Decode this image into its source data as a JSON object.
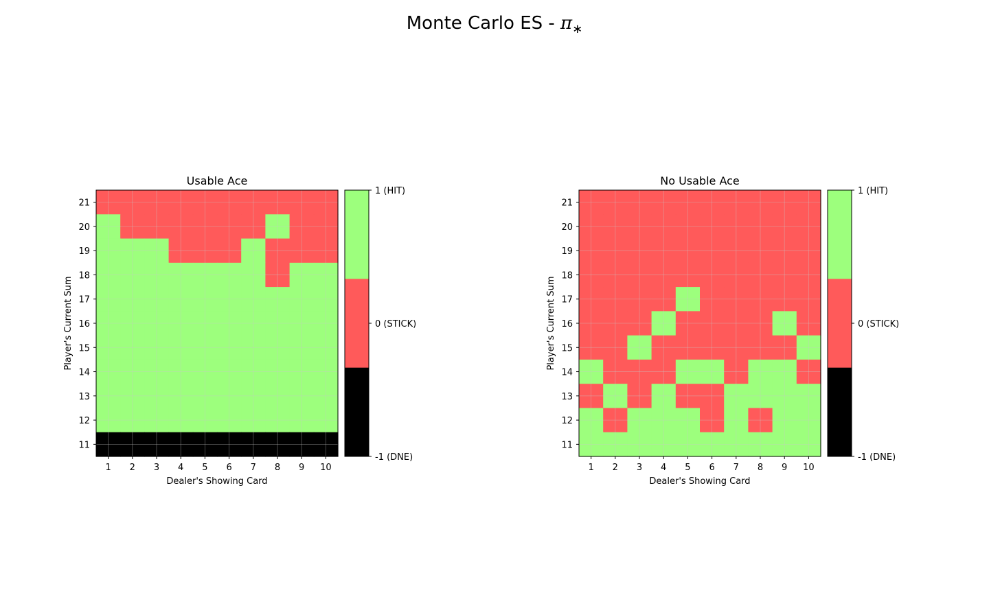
{
  "figure": {
    "title_text": "Monte Carlo ES - ",
    "title_symbol": "π",
    "title_subscript": "∗"
  },
  "colors": {
    "hit": "#9dff7d",
    "stick": "#ff5a5a",
    "dne": "#000000",
    "grid": "#c8c8c8"
  },
  "chart_data": [
    {
      "type": "heatmap",
      "title": "Usable Ace",
      "xlabel": "Dealer's Showing Card",
      "ylabel": "Player's Current Sum",
      "x": [
        1,
        2,
        3,
        4,
        5,
        6,
        7,
        8,
        9,
        10
      ],
      "y": [
        21,
        20,
        19,
        18,
        17,
        16,
        15,
        14,
        13,
        12,
        11
      ],
      "values": [
        [
          0,
          0,
          0,
          0,
          0,
          0,
          0,
          0,
          0,
          0
        ],
        [
          1,
          0,
          0,
          0,
          0,
          0,
          0,
          1,
          0,
          0
        ],
        [
          1,
          1,
          1,
          0,
          0,
          0,
          1,
          0,
          0,
          0
        ],
        [
          1,
          1,
          1,
          1,
          1,
          1,
          1,
          0,
          1,
          1
        ],
        [
          1,
          1,
          1,
          1,
          1,
          1,
          1,
          1,
          1,
          1
        ],
        [
          1,
          1,
          1,
          1,
          1,
          1,
          1,
          1,
          1,
          1
        ],
        [
          1,
          1,
          1,
          1,
          1,
          1,
          1,
          1,
          1,
          1
        ],
        [
          1,
          1,
          1,
          1,
          1,
          1,
          1,
          1,
          1,
          1
        ],
        [
          1,
          1,
          1,
          1,
          1,
          1,
          1,
          1,
          1,
          1
        ],
        [
          1,
          1,
          1,
          1,
          1,
          1,
          1,
          1,
          1,
          1
        ],
        [
          -1,
          -1,
          -1,
          -1,
          -1,
          -1,
          -1,
          -1,
          -1,
          -1
        ]
      ],
      "grid": true,
      "colorbar": {
        "range": [
          -1,
          1
        ],
        "ticks": [
          {
            "value": 1,
            "label": "1 (HIT)"
          },
          {
            "value": 0,
            "label": "0 (STICK)"
          },
          {
            "value": -1,
            "label": "-1 (DNE)"
          }
        ]
      }
    },
    {
      "type": "heatmap",
      "title": "No Usable Ace",
      "xlabel": "Dealer's Showing Card",
      "ylabel": "Player's Current Sum",
      "x": [
        1,
        2,
        3,
        4,
        5,
        6,
        7,
        8,
        9,
        10
      ],
      "y": [
        21,
        20,
        19,
        18,
        17,
        16,
        15,
        14,
        13,
        12,
        11
      ],
      "values": [
        [
          0,
          0,
          0,
          0,
          0,
          0,
          0,
          0,
          0,
          0
        ],
        [
          0,
          0,
          0,
          0,
          0,
          0,
          0,
          0,
          0,
          0
        ],
        [
          0,
          0,
          0,
          0,
          0,
          0,
          0,
          0,
          0,
          0
        ],
        [
          0,
          0,
          0,
          0,
          0,
          0,
          0,
          0,
          0,
          0
        ],
        [
          0,
          0,
          0,
          0,
          1,
          0,
          0,
          0,
          0,
          0
        ],
        [
          0,
          0,
          0,
          1,
          0,
          0,
          0,
          0,
          1,
          0
        ],
        [
          0,
          0,
          1,
          0,
          0,
          0,
          0,
          0,
          0,
          1
        ],
        [
          1,
          0,
          0,
          0,
          1,
          1,
          0,
          1,
          1,
          0
        ],
        [
          0,
          1,
          0,
          1,
          0,
          0,
          1,
          1,
          1,
          1
        ],
        [
          1,
          0,
          1,
          1,
          1,
          0,
          1,
          0,
          1,
          1
        ],
        [
          1,
          1,
          1,
          1,
          1,
          1,
          1,
          1,
          1,
          1
        ]
      ],
      "grid": true,
      "colorbar": {
        "range": [
          -1,
          1
        ],
        "ticks": [
          {
            "value": 1,
            "label": "1 (HIT)"
          },
          {
            "value": 0,
            "label": "0 (STICK)"
          },
          {
            "value": -1,
            "label": "-1 (DNE)"
          }
        ]
      }
    }
  ]
}
